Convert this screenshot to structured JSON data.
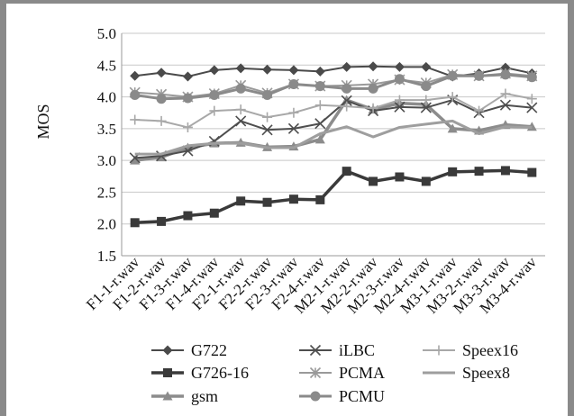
{
  "chart_data": {
    "type": "line",
    "title": "",
    "xlabel": "",
    "ylabel": "MOS",
    "ylim": [
      1.5,
      5.0
    ],
    "yticks": [
      "5.0",
      "4.5",
      "4.0",
      "3.5",
      "3.0",
      "2.5",
      "2.0",
      "1.5"
    ],
    "grid": "horizontal",
    "legend": "bottom",
    "categories": [
      "F1-1-r.wav",
      "F1-2-r.wav",
      "F1-3-r.wav",
      "F1-4-r.wav",
      "F2-1-r.wav",
      "F2-2-r.wav",
      "F2-3-r.wav",
      "F2-4-r.wav",
      "M2-1-r.wav",
      "M2-2-r.wav",
      "M2-3-r.wav",
      "M2-4-r.wav",
      "M3-1-r.wav",
      "M3-2-r.wav",
      "M3-3-r.wav",
      "M3-4-r.wav"
    ],
    "series": [
      {
        "name": "G722",
        "marker": "diamond",
        "color": "#4a4a4a",
        "width": 2,
        "values": [
          4.33,
          4.38,
          4.32,
          4.42,
          4.45,
          4.43,
          4.42,
          4.4,
          4.47,
          4.48,
          4.47,
          4.47,
          4.32,
          4.37,
          4.46,
          4.37
        ]
      },
      {
        "name": "G726-16",
        "marker": "square",
        "color": "#3a3a3a",
        "width": 3.5,
        "values": [
          2.02,
          2.04,
          2.13,
          2.17,
          2.36,
          2.34,
          2.39,
          2.38,
          2.83,
          2.67,
          2.74,
          2.67,
          2.82,
          2.83,
          2.84,
          2.81
        ]
      },
      {
        "name": "gsm",
        "marker": "triangle",
        "color": "#8c8c8c",
        "width": 3.5,
        "values": [
          3.0,
          3.05,
          3.2,
          3.27,
          3.28,
          3.21,
          3.22,
          3.33,
          3.95,
          3.8,
          3.9,
          3.88,
          3.5,
          3.47,
          3.56,
          3.53
        ]
      },
      {
        "name": "iLBC",
        "marker": "x",
        "color": "#4e4e4e",
        "width": 2,
        "values": [
          3.04,
          3.07,
          3.15,
          3.3,
          3.62,
          3.48,
          3.5,
          3.58,
          3.94,
          3.78,
          3.84,
          3.83,
          3.95,
          3.75,
          3.87,
          3.83
        ]
      },
      {
        "name": "PCMA",
        "marker": "star",
        "color": "#9a9a9a",
        "width": 2,
        "values": [
          4.07,
          4.04,
          4.0,
          4.05,
          4.18,
          4.06,
          4.2,
          4.17,
          4.18,
          4.2,
          4.27,
          4.22,
          4.35,
          4.33,
          4.37,
          4.33
        ]
      },
      {
        "name": "PCMU",
        "marker": "circle",
        "color": "#8a8a8a",
        "width": 3,
        "values": [
          4.03,
          3.97,
          3.98,
          4.03,
          4.13,
          4.03,
          4.2,
          4.17,
          4.13,
          4.13,
          4.28,
          4.17,
          4.33,
          4.33,
          4.35,
          4.31
        ]
      },
      {
        "name": "Speex16",
        "marker": "plus",
        "color": "#a8a8a8",
        "width": 2,
        "values": [
          3.64,
          3.62,
          3.52,
          3.78,
          3.8,
          3.68,
          3.75,
          3.87,
          3.85,
          3.82,
          3.95,
          3.95,
          4.0,
          3.78,
          4.05,
          3.97
        ]
      },
      {
        "name": "Speex8",
        "marker": "none",
        "color": "#9e9e9e",
        "width": 3,
        "values": [
          3.1,
          3.1,
          3.23,
          3.27,
          3.27,
          3.2,
          3.2,
          3.42,
          3.53,
          3.37,
          3.52,
          3.57,
          3.62,
          3.42,
          3.53,
          3.52
        ]
      }
    ]
  }
}
